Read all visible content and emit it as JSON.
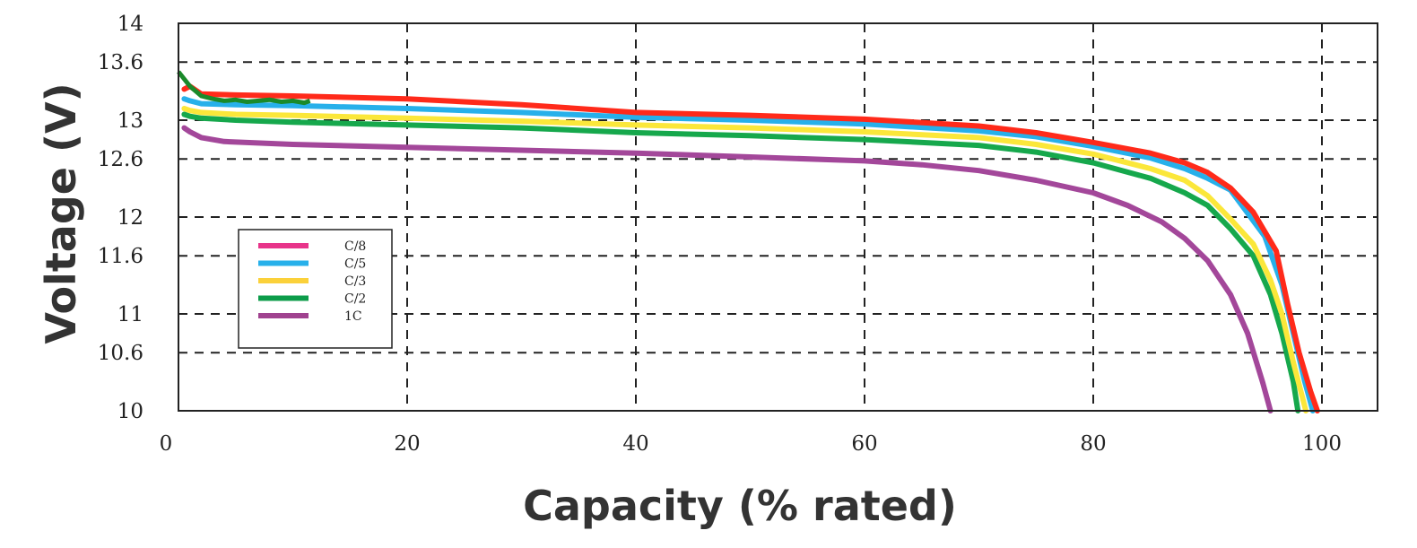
{
  "chart_data": {
    "type": "line",
    "title": "",
    "xlabel": "Capacity (% rated)",
    "ylabel": "Voltage (V)",
    "xlim": [
      0,
      105
    ],
    "ylim": [
      10,
      14
    ],
    "xticks": [
      0,
      20,
      40,
      60,
      80,
      100
    ],
    "yticks": [
      10,
      10.6,
      11,
      11.6,
      12,
      12.6,
      13,
      13.6,
      14
    ],
    "ytick_labels": [
      "10",
      "10.6",
      "11",
      "11.6",
      "12",
      "12.6",
      "13",
      "13.6",
      "14"
    ],
    "xtick_labels": [
      "0",
      "20",
      "40",
      "60",
      "80",
      "100"
    ],
    "grid": true,
    "legend_position": "lower-left",
    "series": [
      {
        "name": "C/8",
        "legend_color": "#e8348a",
        "line_color": "#ff2a1a",
        "points": [
          [
            0.5,
            13.32
          ],
          [
            1,
            13.35
          ],
          [
            2,
            13.27
          ],
          [
            5,
            13.26
          ],
          [
            10,
            13.25
          ],
          [
            20,
            13.22
          ],
          [
            30,
            13.16
          ],
          [
            40,
            13.08
          ],
          [
            50,
            13.05
          ],
          [
            60,
            13.01
          ],
          [
            70,
            12.94
          ],
          [
            75,
            12.87
          ],
          [
            80,
            12.77
          ],
          [
            85,
            12.66
          ],
          [
            88,
            12.56
          ],
          [
            90,
            12.46
          ],
          [
            92,
            12.3
          ],
          [
            94,
            12.05
          ],
          [
            96,
            11.65
          ],
          [
            97,
            11.1
          ],
          [
            98,
            10.6
          ],
          [
            99,
            10.2
          ],
          [
            99.6,
            10.0
          ]
        ]
      },
      {
        "name": "C/5",
        "legend_color": "#27b0ea",
        "line_color": "#27b0ea",
        "points": [
          [
            0.5,
            13.22
          ],
          [
            1,
            13.2
          ],
          [
            2,
            13.17
          ],
          [
            5,
            13.16
          ],
          [
            10,
            13.15
          ],
          [
            20,
            13.12
          ],
          [
            30,
            13.08
          ],
          [
            40,
            13.03
          ],
          [
            50,
            13.0
          ],
          [
            60,
            12.96
          ],
          [
            70,
            12.89
          ],
          [
            75,
            12.83
          ],
          [
            80,
            12.73
          ],
          [
            85,
            12.61
          ],
          [
            88,
            12.5
          ],
          [
            90,
            12.4
          ],
          [
            92,
            12.28
          ],
          [
            93,
            12.12
          ],
          [
            95,
            11.8
          ],
          [
            96.5,
            11.3
          ],
          [
            97.5,
            10.8
          ],
          [
            98.5,
            10.3
          ],
          [
            99.2,
            10.0
          ]
        ]
      },
      {
        "name": "C/3",
        "legend_color": "#fbd13a",
        "line_color": "#fbe73a",
        "points": [
          [
            0.5,
            13.12
          ],
          [
            1,
            13.1
          ],
          [
            2,
            13.08
          ],
          [
            5,
            13.06
          ],
          [
            10,
            13.05
          ],
          [
            20,
            13.02
          ],
          [
            30,
            12.99
          ],
          [
            40,
            12.95
          ],
          [
            50,
            12.92
          ],
          [
            60,
            12.88
          ],
          [
            70,
            12.82
          ],
          [
            75,
            12.75
          ],
          [
            80,
            12.65
          ],
          [
            85,
            12.5
          ],
          [
            88,
            12.38
          ],
          [
            90,
            12.22
          ],
          [
            92,
            11.98
          ],
          [
            94,
            11.72
          ],
          [
            95.5,
            11.35
          ],
          [
            96.5,
            11.0
          ],
          [
            97.5,
            10.5
          ],
          [
            98.6,
            10.0
          ]
        ]
      },
      {
        "name": "C/2",
        "legend_color": "#0c9c4a",
        "line_color": "#16a84c",
        "points": [
          [
            0.5,
            13.06
          ],
          [
            1,
            13.04
          ],
          [
            2,
            13.02
          ],
          [
            5,
            13.0
          ],
          [
            10,
            12.98
          ],
          [
            20,
            12.95
          ],
          [
            30,
            12.92
          ],
          [
            40,
            12.87
          ],
          [
            50,
            12.84
          ],
          [
            60,
            12.8
          ],
          [
            70,
            12.74
          ],
          [
            75,
            12.67
          ],
          [
            80,
            12.56
          ],
          [
            85,
            12.4
          ],
          [
            88,
            12.25
          ],
          [
            90,
            12.12
          ],
          [
            92,
            11.88
          ],
          [
            94,
            11.6
          ],
          [
            95.5,
            11.2
          ],
          [
            96.5,
            10.8
          ],
          [
            97.5,
            10.3
          ],
          [
            97.9,
            10.0
          ]
        ]
      },
      {
        "name": "1C",
        "legend_color": "#a0428f",
        "line_color": "#a3479a",
        "points": [
          [
            0.5,
            12.92
          ],
          [
            1,
            12.88
          ],
          [
            2,
            12.82
          ],
          [
            4,
            12.78
          ],
          [
            10,
            12.75
          ],
          [
            20,
            12.72
          ],
          [
            30,
            12.69
          ],
          [
            40,
            12.66
          ],
          [
            50,
            12.62
          ],
          [
            60,
            12.58
          ],
          [
            65,
            12.54
          ],
          [
            70,
            12.48
          ],
          [
            75,
            12.38
          ],
          [
            80,
            12.25
          ],
          [
            83,
            12.12
          ],
          [
            86,
            11.95
          ],
          [
            88,
            11.78
          ],
          [
            90,
            11.55
          ],
          [
            92,
            11.2
          ],
          [
            93.5,
            10.8
          ],
          [
            94.8,
            10.3
          ],
          [
            95.5,
            10.0
          ]
        ]
      }
    ],
    "startup_noise_series": {
      "line_color": "#1a8a2a",
      "points": [
        [
          0,
          13.5
        ],
        [
          1,
          13.35
        ],
        [
          2,
          13.25
        ],
        [
          3,
          13.22
        ],
        [
          4,
          13.2
        ],
        [
          5,
          13.21
        ],
        [
          6,
          13.19
        ],
        [
          7,
          13.2
        ],
        [
          8,
          13.21
        ],
        [
          9,
          13.19
        ],
        [
          10,
          13.2
        ],
        [
          11,
          13.18
        ],
        [
          11.5,
          13.2
        ]
      ]
    }
  }
}
